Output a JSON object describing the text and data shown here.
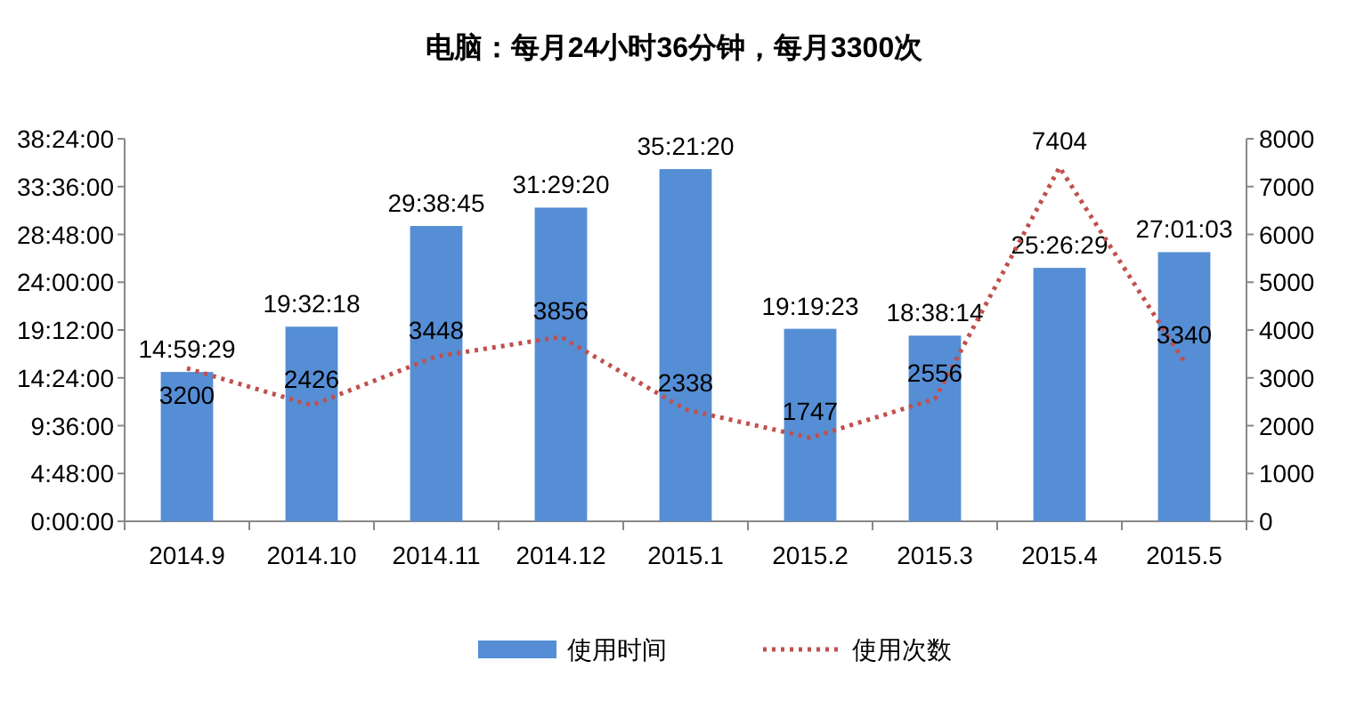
{
  "chart_data": {
    "type": "bar",
    "title": "电脑：每月24小时36分钟，每月3300次",
    "categories": [
      "2014.9",
      "2014.10",
      "2014.11",
      "2014.12",
      "2015.1",
      "2015.2",
      "2015.3",
      "2015.4",
      "2015.5"
    ],
    "series": [
      {
        "name": "使用时间",
        "color": "#558ed5",
        "values": [
          14.99139,
          19.53833,
          29.64583,
          31.48889,
          35.35556,
          19.32306,
          18.63722,
          25.44139,
          27.0175
        ],
        "value_labels": [
          "14:59:29",
          "19:32:18",
          "29:38:45",
          "31:29:20",
          "35:21:20",
          "19:19:23",
          "18:38:14",
          "25:26:29",
          "27:01:03"
        ]
      },
      {
        "name": "使用次数",
        "type": "line",
        "axis": "y2",
        "color": "#c0504d",
        "line_style": "dotted",
        "marker": "none",
        "values": [
          3200,
          2426,
          3448,
          3856,
          2338,
          1747,
          2556,
          7404,
          3340
        ],
        "value_labels": [
          "3200",
          "2426",
          "3448",
          "3856",
          "2338",
          "1747",
          "2556",
          "7404",
          "3340"
        ]
      }
    ],
    "ylim": [
      0,
      38.4
    ],
    "yticks": [
      {
        "value": 0,
        "label": "0:00:00"
      },
      {
        "value": 4.8,
        "label": "4:48:00"
      },
      {
        "value": 9.6,
        "label": "9:36:00"
      },
      {
        "value": 14.4,
        "label": "14:24:00"
      },
      {
        "value": 19.2,
        "label": "19:12:00"
      },
      {
        "value": 24,
        "label": "24:00:00"
      },
      {
        "value": 28.8,
        "label": "28:48:00"
      },
      {
        "value": 33.6,
        "label": "33:36:00"
      },
      {
        "value": 38.4,
        "label": "38:24:00"
      }
    ],
    "y2lim": [
      0,
      8000
    ],
    "y2ticks": [
      0,
      1000,
      2000,
      3000,
      4000,
      5000,
      6000,
      7000,
      8000
    ],
    "legend": "bottom",
    "grid": false
  }
}
